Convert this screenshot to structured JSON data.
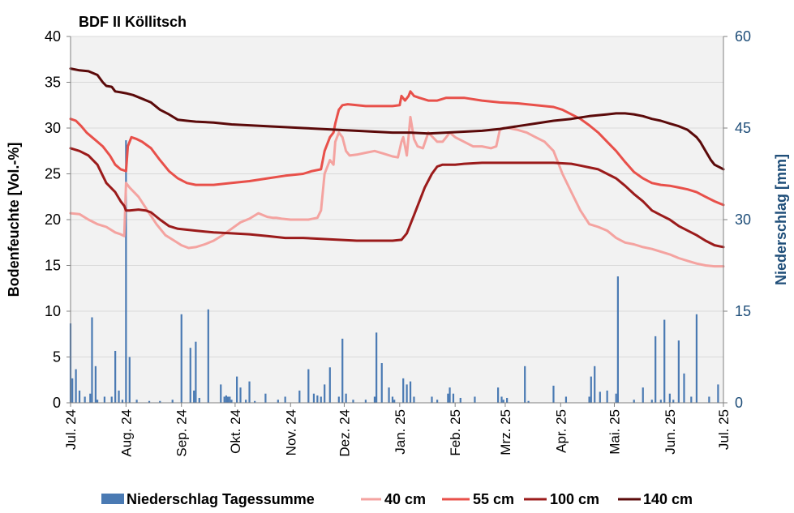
{
  "chart_data": {
    "type": "line",
    "title": "BDF II Köllitsch",
    "ylabel": "Bodenfeuchte [Vol.-%]",
    "y2label": "Niederschlag [mm]",
    "ylim": [
      0,
      40
    ],
    "y2lim": [
      0,
      60
    ],
    "yticks": [
      0,
      5,
      10,
      15,
      20,
      25,
      30,
      35,
      40
    ],
    "y2ticks": [
      0,
      15,
      30,
      45,
      60
    ],
    "grid": true,
    "legend_position": "bottom",
    "x_tick_labels": [
      "Jul. 24",
      "Aug. 24",
      "Sep. 24",
      "Okt. 24",
      "Nov. 24",
      "Dez. 24",
      "Jan. 25",
      "Feb. 25",
      "Mrz. 25",
      "Apr. 25",
      "Mai. 25",
      "Jun. 25",
      "Jul. 25"
    ],
    "x_tick_days": [
      0,
      31,
      62,
      92,
      123,
      153,
      184,
      215,
      243,
      274,
      304,
      335,
      365
    ],
    "series": [
      {
        "name": "40 cm",
        "color": "#f4a3a0",
        "x_days": [
          0,
          5,
          10,
          15,
          20,
          25,
          28,
          30,
          31,
          33,
          38,
          43,
          48,
          53,
          58,
          62,
          66,
          70,
          75,
          80,
          85,
          90,
          95,
          100,
          105,
          110,
          113,
          115,
          118,
          123,
          128,
          133,
          138,
          140,
          142,
          145,
          147,
          148,
          150,
          152,
          154,
          156,
          160,
          165,
          170,
          175,
          180,
          183,
          185,
          186,
          188,
          190,
          192,
          194,
          197,
          200,
          205,
          208,
          210,
          212,
          215,
          220,
          225,
          230,
          235,
          238,
          240,
          242,
          245,
          250,
          255,
          260,
          265,
          270,
          275,
          280,
          285,
          290,
          295,
          300,
          305,
          310,
          315,
          320,
          325,
          330,
          335,
          340,
          345,
          350,
          355,
          360,
          365
        ],
        "values": [
          20.7,
          20.6,
          20.0,
          19.5,
          19.2,
          18.6,
          18.4,
          18.2,
          24.0,
          23.5,
          22.5,
          21.0,
          19.5,
          18.3,
          17.7,
          17.2,
          16.9,
          17.0,
          17.3,
          17.7,
          18.3,
          19.0,
          19.7,
          20.1,
          20.7,
          20.3,
          20.2,
          20.2,
          20.1,
          20.0,
          20.0,
          20.0,
          20.2,
          21.0,
          25.0,
          26.5,
          26.0,
          28.5,
          29.5,
          29.0,
          27.5,
          27.0,
          27.1,
          27.3,
          27.5,
          27.2,
          26.9,
          26.8,
          28.5,
          29.0,
          27.0,
          31.2,
          28.8,
          28.0,
          27.8,
          29.5,
          28.5,
          28.5,
          29.0,
          29.5,
          29.0,
          28.5,
          28.0,
          28.0,
          27.8,
          28.0,
          29.8,
          30.0,
          30.0,
          29.8,
          29.5,
          29.0,
          28.5,
          27.5,
          25.0,
          23.0,
          21.0,
          19.5,
          19.2,
          18.8,
          18.0,
          17.5,
          17.3,
          17.0,
          16.8,
          16.5,
          16.2,
          15.8,
          15.5,
          15.2,
          15.0,
          14.9,
          14.9
        ]
      },
      {
        "name": "55 cm",
        "color": "#e8504a",
        "x_days": [
          0,
          3,
          6,
          9,
          12,
          15,
          18,
          22,
          25,
          28,
          31,
          32,
          34,
          37,
          40,
          45,
          50,
          55,
          60,
          65,
          70,
          80,
          90,
          100,
          110,
          120,
          130,
          135,
          140,
          142,
          145,
          147,
          148,
          150,
          152,
          155,
          160,
          165,
          170,
          175,
          180,
          184,
          185,
          187,
          189,
          190,
          192,
          195,
          200,
          205,
          210,
          220,
          230,
          240,
          250,
          260,
          270,
          275,
          280,
          285,
          290,
          295,
          300,
          305,
          310,
          315,
          320,
          325,
          330,
          335,
          340,
          345,
          350,
          355,
          360,
          365
        ],
        "values": [
          31.0,
          30.8,
          30.2,
          29.5,
          29.0,
          28.5,
          28.0,
          27.0,
          26.0,
          25.5,
          25.3,
          28.0,
          29.0,
          28.8,
          28.5,
          27.8,
          26.5,
          25.3,
          24.5,
          24.0,
          23.8,
          23.8,
          24.0,
          24.2,
          24.5,
          24.8,
          25.0,
          25.3,
          25.5,
          27.5,
          29.0,
          29.5,
          30.5,
          32.0,
          32.5,
          32.6,
          32.5,
          32.4,
          32.4,
          32.4,
          32.4,
          32.5,
          33.5,
          33.0,
          33.5,
          34.0,
          33.5,
          33.3,
          33.0,
          33.0,
          33.3,
          33.3,
          33.0,
          32.8,
          32.7,
          32.5,
          32.3,
          32.0,
          31.5,
          31.0,
          30.3,
          29.5,
          28.5,
          27.5,
          26.3,
          25.2,
          24.5,
          24.0,
          23.8,
          23.7,
          23.5,
          23.3,
          23.0,
          22.5,
          22.0,
          21.6
        ]
      },
      {
        "name": "100 cm",
        "color": "#9b1b1b",
        "x_days": [
          0,
          5,
          10,
          15,
          20,
          25,
          28,
          30,
          31,
          33,
          38,
          42,
          45,
          50,
          55,
          60,
          70,
          80,
          90,
          100,
          110,
          120,
          130,
          140,
          150,
          160,
          170,
          180,
          185,
          188,
          192,
          195,
          198,
          202,
          205,
          208,
          212,
          215,
          220,
          230,
          240,
          250,
          260,
          270,
          280,
          285,
          290,
          295,
          300,
          305,
          310,
          315,
          320,
          325,
          330,
          335,
          340,
          345,
          350,
          355,
          360,
          365
        ],
        "values": [
          27.8,
          27.5,
          27.0,
          26.0,
          24.0,
          23.0,
          22.0,
          21.5,
          21.0,
          21.0,
          21.1,
          21.0,
          20.8,
          20.0,
          19.3,
          19.0,
          18.8,
          18.6,
          18.5,
          18.4,
          18.2,
          18.0,
          18.0,
          17.9,
          17.8,
          17.7,
          17.7,
          17.7,
          17.8,
          18.5,
          20.5,
          22.0,
          23.5,
          25.0,
          25.8,
          26.0,
          26.0,
          26.0,
          26.1,
          26.2,
          26.2,
          26.2,
          26.2,
          26.2,
          26.1,
          25.9,
          25.7,
          25.5,
          25.0,
          24.5,
          23.7,
          22.8,
          22.0,
          21.0,
          20.5,
          20.0,
          19.3,
          18.8,
          18.3,
          17.7,
          17.2,
          17.0
        ]
      },
      {
        "name": "140 cm",
        "color": "#5b0a0a",
        "x_days": [
          0,
          5,
          10,
          15,
          18,
          20,
          23,
          25,
          28,
          31,
          35,
          40,
          45,
          50,
          55,
          60,
          65,
          70,
          80,
          90,
          100,
          110,
          120,
          130,
          140,
          150,
          160,
          170,
          180,
          190,
          200,
          210,
          220,
          230,
          240,
          250,
          260,
          270,
          280,
          290,
          300,
          305,
          310,
          315,
          320,
          325,
          330,
          335,
          340,
          345,
          350,
          352,
          355,
          358,
          360,
          363,
          365
        ],
        "values": [
          36.5,
          36.3,
          36.2,
          35.8,
          35.0,
          34.6,
          34.5,
          34.0,
          33.9,
          33.8,
          33.6,
          33.2,
          32.8,
          32.0,
          31.5,
          30.9,
          30.8,
          30.7,
          30.6,
          30.4,
          30.3,
          30.2,
          30.1,
          30.0,
          29.9,
          29.8,
          29.7,
          29.6,
          29.5,
          29.5,
          29.4,
          29.5,
          29.6,
          29.7,
          29.9,
          30.2,
          30.5,
          30.8,
          31.0,
          31.3,
          31.5,
          31.6,
          31.6,
          31.5,
          31.3,
          31.0,
          30.8,
          30.5,
          30.2,
          29.8,
          29.0,
          28.5,
          27.5,
          26.5,
          26.0,
          25.7,
          25.5
        ]
      }
    ],
    "precipitation": {
      "name": "Niederschlag Tagessumme",
      "color": "#4a7ab3",
      "x_days": [
        0,
        1,
        3,
        5,
        8,
        11,
        12,
        14,
        15,
        19,
        23,
        25,
        27,
        29,
        31,
        33,
        37,
        44,
        50,
        57,
        62,
        67,
        69,
        70,
        72,
        77,
        84,
        86,
        87,
        88,
        89,
        90,
        93,
        95,
        98,
        100,
        103,
        109,
        116,
        120,
        128,
        133,
        136,
        138,
        140,
        142,
        145,
        150,
        152,
        154,
        158,
        165,
        170,
        171,
        174,
        178,
        180,
        181,
        186,
        188,
        190,
        192,
        202,
        205,
        211,
        212,
        214,
        218,
        226,
        239,
        241,
        242,
        244,
        254,
        256,
        270,
        277,
        290,
        291,
        293,
        296,
        300,
        305,
        306,
        315,
        320,
        325,
        327,
        330,
        332,
        335,
        337,
        340,
        343,
        347,
        350,
        357,
        362
      ],
      "values": [
        13.0,
        4.0,
        5.5,
        2.0,
        1.0,
        1.5,
        14.0,
        6.0,
        0.5,
        1.0,
        1.0,
        8.5,
        2.0,
        0.5,
        43.0,
        7.5,
        0.5,
        0.3,
        0.3,
        0.5,
        14.5,
        9.0,
        2.0,
        10.0,
        0.8,
        15.3,
        3.0,
        1.0,
        1.2,
        1.0,
        1.0,
        0.5,
        4.3,
        2.5,
        0.5,
        3.5,
        0.3,
        1.5,
        0.5,
        1.0,
        2.0,
        5.5,
        1.5,
        1.2,
        1.0,
        3.0,
        5.8,
        1.0,
        10.5,
        1.5,
        0.5,
        0.5,
        1.0,
        11.5,
        6.5,
        2.5,
        1.0,
        0.5,
        4.0,
        3.0,
        3.5,
        1.0,
        1.0,
        0.5,
        1.5,
        2.5,
        1.5,
        0.8,
        1.0,
        2.5,
        1.0,
        0.5,
        0.8,
        6.0,
        0.3,
        2.8,
        1.0,
        1.0,
        4.3,
        6.0,
        1.8,
        2.0,
        1.5,
        20.7,
        0.5,
        2.5,
        0.5,
        10.9,
        0.5,
        13.6,
        1.5,
        0.5,
        10.2,
        4.8,
        1.0,
        14.5,
        1.0,
        3.0
      ]
    }
  }
}
